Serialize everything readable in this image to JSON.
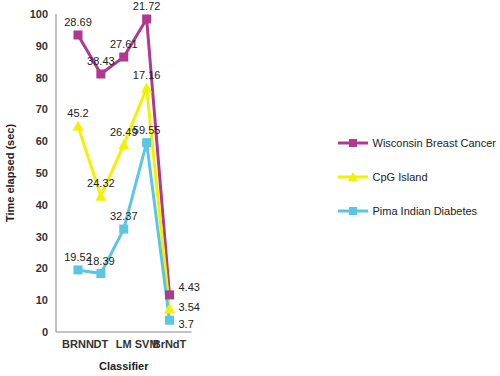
{
  "chart_data": {
    "type": "line",
    "xlabel": "Classifier",
    "ylabel": "Time elapsed (sec)",
    "categories": [
      "BRNN",
      "DT",
      "LM",
      "SVM",
      "BrNdT"
    ],
    "series": [
      {
        "name": "Wisconsin Breast Cancer",
        "color": "#b0398f",
        "marker": "square",
        "values": [
          28.69,
          38.43,
          27.61,
          21.72,
          4.43
        ]
      },
      {
        "name": "CpG Island",
        "color": "#f2f200",
        "marker": "triangle",
        "values": [
          45.2,
          24.32,
          26.49,
          17.16,
          3.54
        ]
      },
      {
        "name": "Pima Indian Diabetes",
        "color": "#5bc6e0",
        "marker": "square",
        "values": [
          19.52,
          18.39,
          32.37,
          59.55,
          3.7
        ]
      }
    ],
    "stacked": true,
    "data_labels": true,
    "legend": "right",
    "ylim": [
      0,
      100
    ],
    "yticks": [
      0,
      10,
      20,
      30,
      40,
      50,
      60,
      70,
      80,
      90,
      100
    ]
  }
}
